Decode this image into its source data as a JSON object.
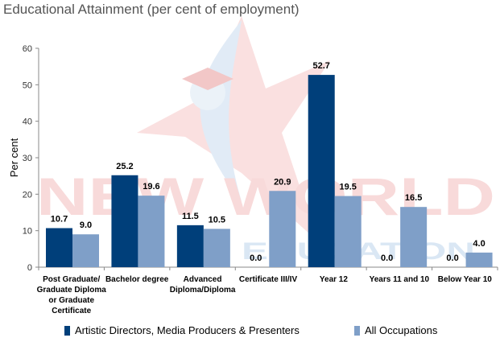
{
  "chart_data": {
    "type": "bar",
    "title": "Educational Attainment (per cent of employment)",
    "ylabel": "Per cent",
    "xlabel": "",
    "ylim": [
      0,
      60
    ],
    "yticks": [
      0,
      10,
      20,
      30,
      40,
      50,
      60
    ],
    "grid": false,
    "legend_position": "bottom",
    "categories": [
      "Post Graduate/ Graduate Diploma or Graduate Certificate",
      "Bachelor degree",
      "Advanced Diploma/Diploma",
      "Certificate III/IV",
      "Year 12",
      "Years 11 and 10",
      "Below Year 10"
    ],
    "category_lines": [
      [
        "Post Graduate/",
        "Graduate Diploma",
        "or Graduate",
        "Certificate"
      ],
      [
        "Bachelor degree"
      ],
      [
        "Advanced",
        "Diploma/Diploma"
      ],
      [
        "Certificate III/IV"
      ],
      [
        "Year 12"
      ],
      [
        "Years 11 and 10"
      ],
      [
        "Below Year 10"
      ]
    ],
    "series": [
      {
        "name": "Artistic Directors, Media Producers & Presenters",
        "color": "#003F7A",
        "values": [
          10.7,
          25.2,
          11.5,
          0.0,
          52.7,
          0.0,
          0.0
        ],
        "labels": [
          "10.7",
          "25.2",
          "11.5",
          "0.0",
          "52.7",
          "0.0",
          "0.0"
        ]
      },
      {
        "name": "All Occupations",
        "color": "#7F9FC8",
        "values": [
          9.0,
          19.6,
          10.5,
          20.9,
          19.5,
          16.5,
          4.0
        ],
        "labels": [
          "9.0",
          "19.6",
          "10.5",
          "20.9",
          "19.5",
          "16.5",
          "4.0"
        ]
      }
    ]
  },
  "watermark": {
    "text_top": "NEW WORLD",
    "text_bottom": "EDUCATION"
  },
  "colors": {
    "axis": "#888888",
    "title": "#555555"
  }
}
